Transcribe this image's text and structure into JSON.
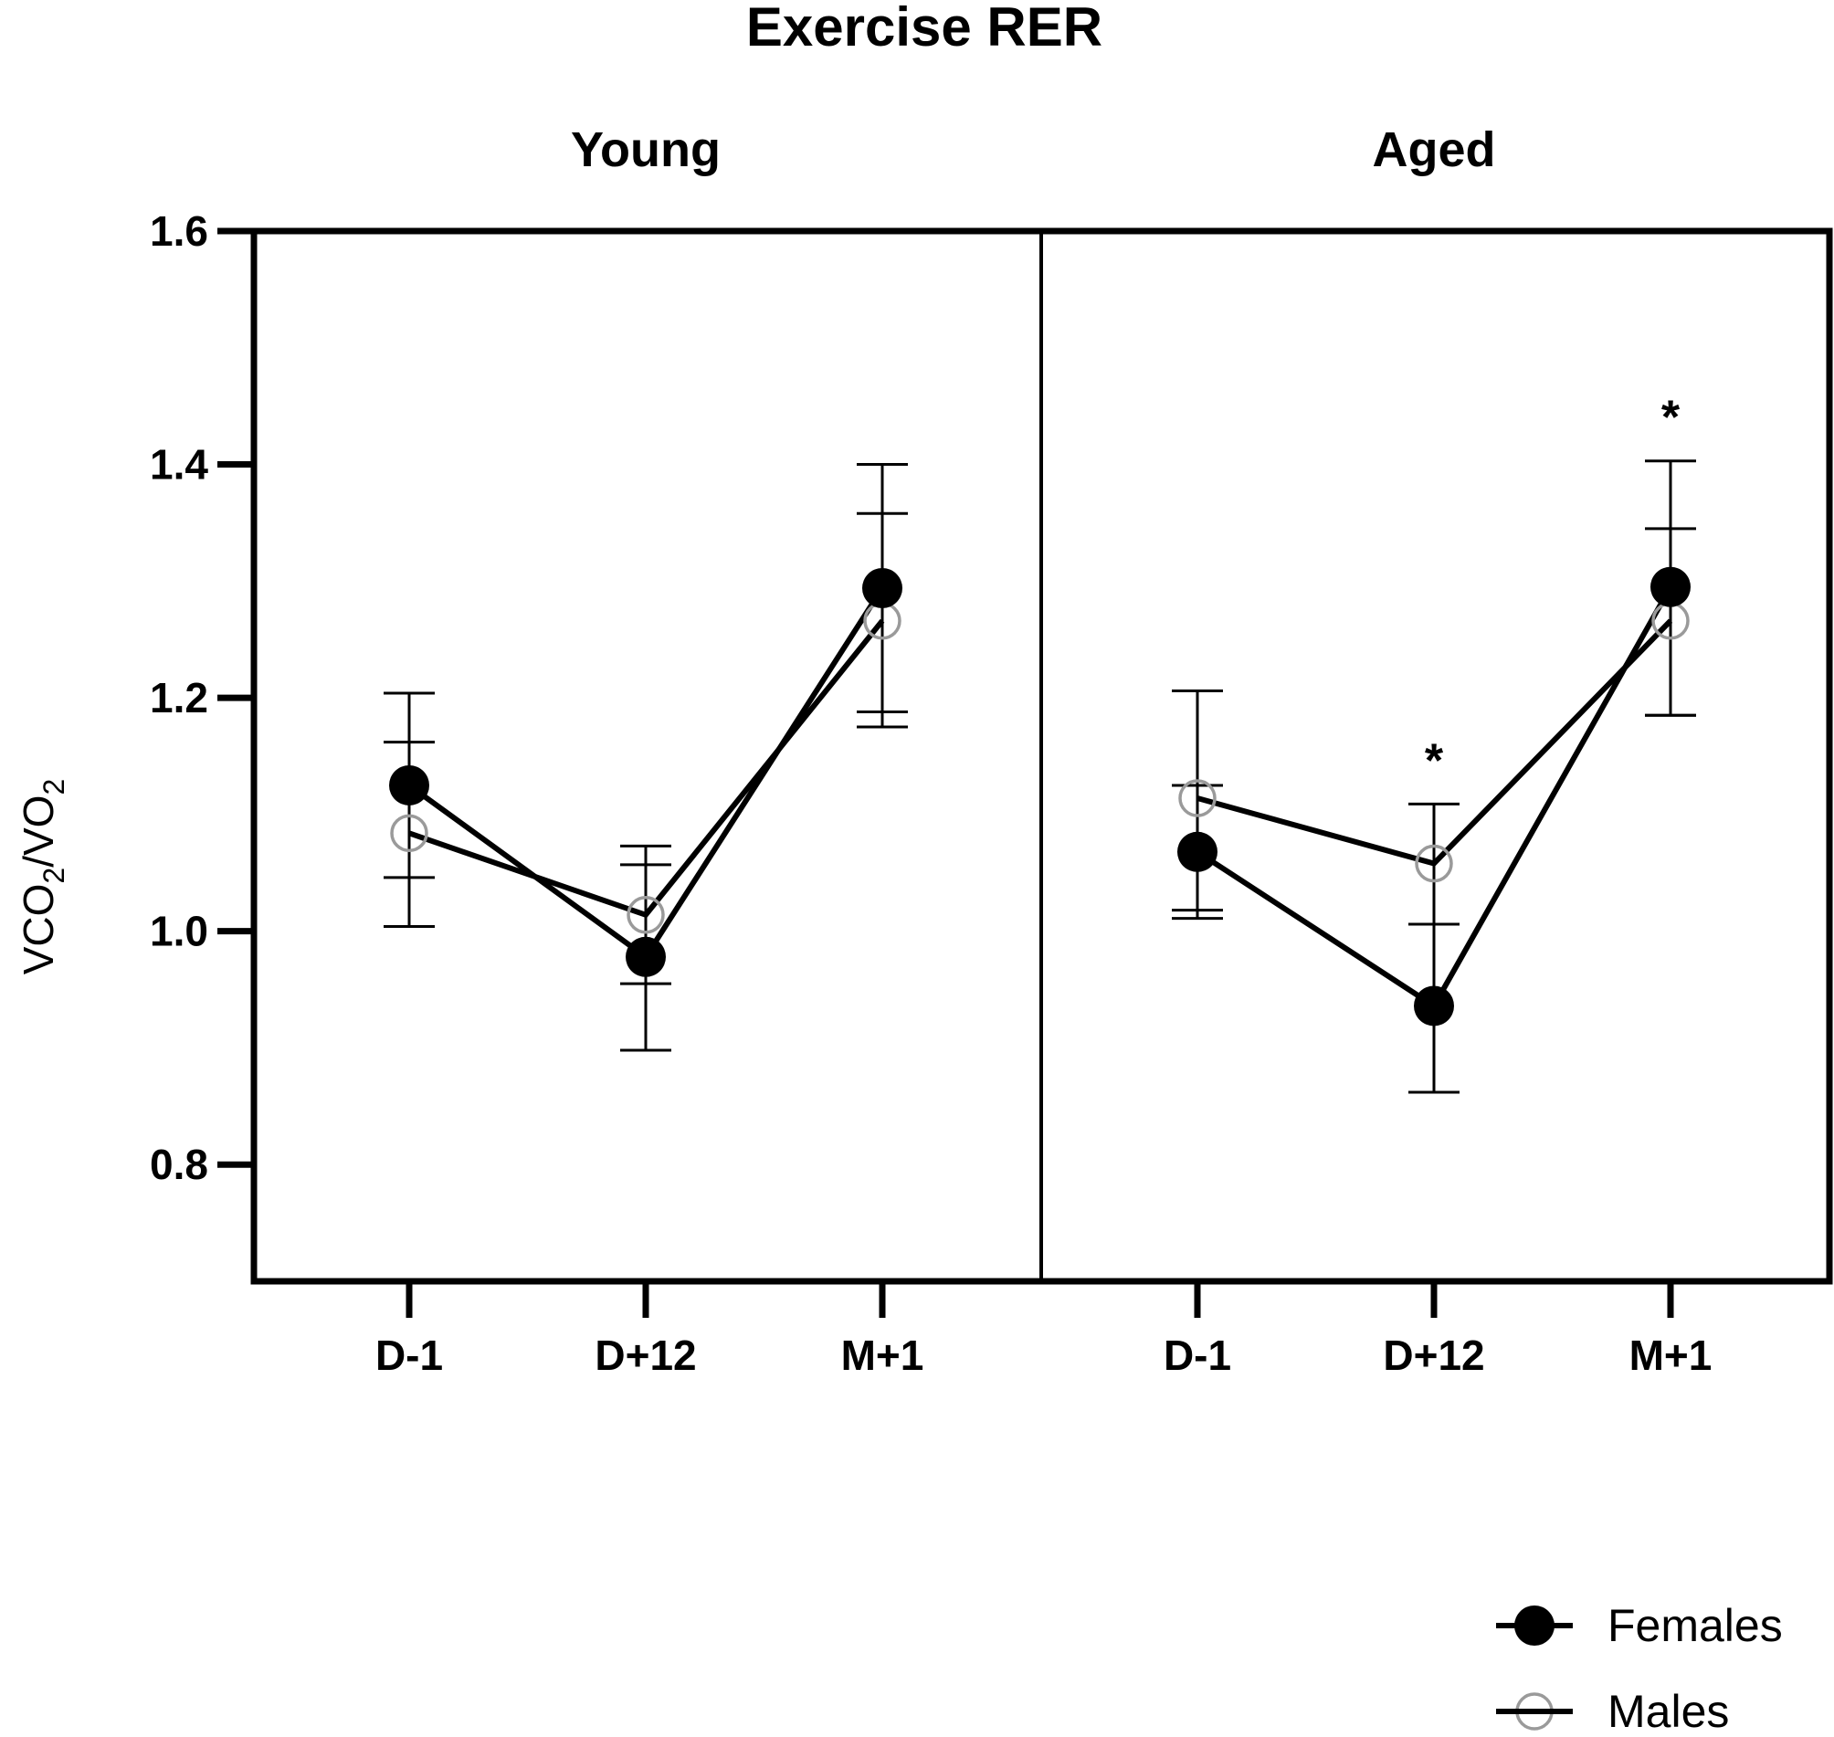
{
  "chart_data": {
    "type": "line",
    "title": "Exercise RER",
    "ylabel": {
      "prefix": "VCO",
      "sub1": "2",
      "mid": "/VO",
      "sub2": "2"
    },
    "ylim": [
      0.7,
      1.6
    ],
    "yticks": [
      "0.8",
      "1.0",
      "1.2",
      "1.4",
      "1.6"
    ],
    "grid": false,
    "legend_position": "bottom-right",
    "colors": {
      "females": "#000000",
      "males_marker": "#9a9a9a",
      "line": "#000000"
    },
    "panels": [
      {
        "name": "Young",
        "categories": [
          "D-1",
          "D+12",
          "M+1"
        ],
        "series": [
          {
            "name": "Females",
            "marker": "filled-circle",
            "values": [
              1.125,
              0.978,
              1.294
            ],
            "err_low": [
              1.046,
              0.898,
              1.188
            ],
            "err_high": [
              1.162,
              1.057,
              1.358
            ]
          },
          {
            "name": "Males",
            "marker": "open-circle",
            "values": [
              1.084,
              1.014,
              1.266
            ],
            "err_low": [
              1.004,
              0.955,
              1.175
            ],
            "err_high": [
              1.204,
              1.073,
              1.4
            ]
          }
        ],
        "annotations": []
      },
      {
        "name": "Aged",
        "categories": [
          "D-1",
          "D+12",
          "M+1"
        ],
        "series": [
          {
            "name": "Females",
            "marker": "filled-circle",
            "values": [
              1.068,
              0.936,
              1.295
            ],
            "err_low": [
              1.011,
              0.862,
              1.185
            ],
            "err_high": [
              1.125,
              1.006,
              1.345
            ]
          },
          {
            "name": "Males",
            "marker": "open-circle",
            "values": [
              1.114,
              1.058,
              1.266
            ],
            "err_low": [
              1.018,
              1.006,
              1.185
            ],
            "err_high": [
              1.206,
              1.109,
              1.403
            ]
          }
        ],
        "annotations": [
          {
            "category": "D+12",
            "text": "*"
          },
          {
            "category": "M+1",
            "text": "*"
          }
        ]
      }
    ]
  }
}
